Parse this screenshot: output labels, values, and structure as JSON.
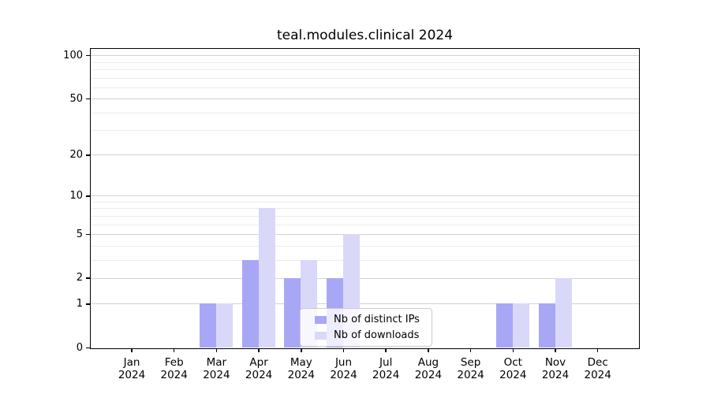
{
  "chart_data": {
    "type": "bar",
    "title": "teal.modules.clinical 2024",
    "categories": [
      "Jan",
      "Feb",
      "Mar",
      "Apr",
      "May",
      "Jun",
      "Jul",
      "Aug",
      "Sep",
      "Oct",
      "Nov",
      "Dec"
    ],
    "year_label": "2024",
    "series": [
      {
        "name": "Nb of distinct IPs",
        "color": "#a8a7f6",
        "values": [
          0,
          0,
          1,
          3,
          2,
          2,
          0,
          0,
          0,
          1,
          1,
          0
        ]
      },
      {
        "name": "Nb of downloads",
        "color": "#d9d8f8",
        "values": [
          0,
          0,
          1,
          8,
          3,
          5,
          0,
          0,
          0,
          1,
          2,
          0
        ]
      }
    ],
    "yscale": "log1p",
    "y_ticks": [
      0,
      1,
      2,
      5,
      10,
      20,
      50,
      100
    ],
    "y_minor_gridlines": [
      3,
      4,
      6,
      7,
      8,
      9,
      30,
      40,
      60,
      70,
      80,
      90
    ],
    "ylim": [
      0,
      130
    ],
    "grid": "on",
    "legend_position": "lower-center-inside",
    "axis_color": "#000000",
    "major_grid_color": "#d2d2d2",
    "minor_grid_color": "#ececec"
  }
}
